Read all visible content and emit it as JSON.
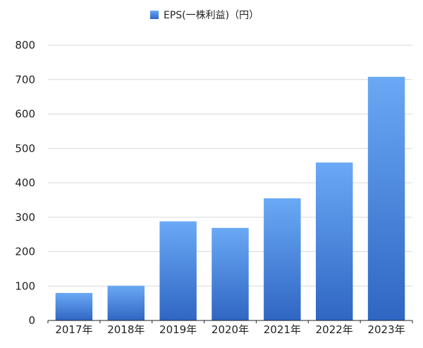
{
  "chart_data": {
    "type": "bar",
    "categories": [
      "2017年",
      "2018年",
      "2019年",
      "2020年",
      "2021年",
      "2022年",
      "2023年"
    ],
    "series": [
      {
        "name": "EPS(一株利益)（円）",
        "values": [
          80,
          101,
          288,
          269,
          355,
          459,
          708
        ]
      }
    ],
    "ylim": [
      0,
      800
    ],
    "yticks": [
      0,
      100,
      200,
      300,
      400,
      500,
      600,
      700,
      800
    ],
    "grid": true,
    "legend_position": "top",
    "colors": {
      "bar_top": "#6aa9f5",
      "bar_bottom": "#2f66c3",
      "grid": "#d9d9d9",
      "axis": "#222222"
    }
  }
}
